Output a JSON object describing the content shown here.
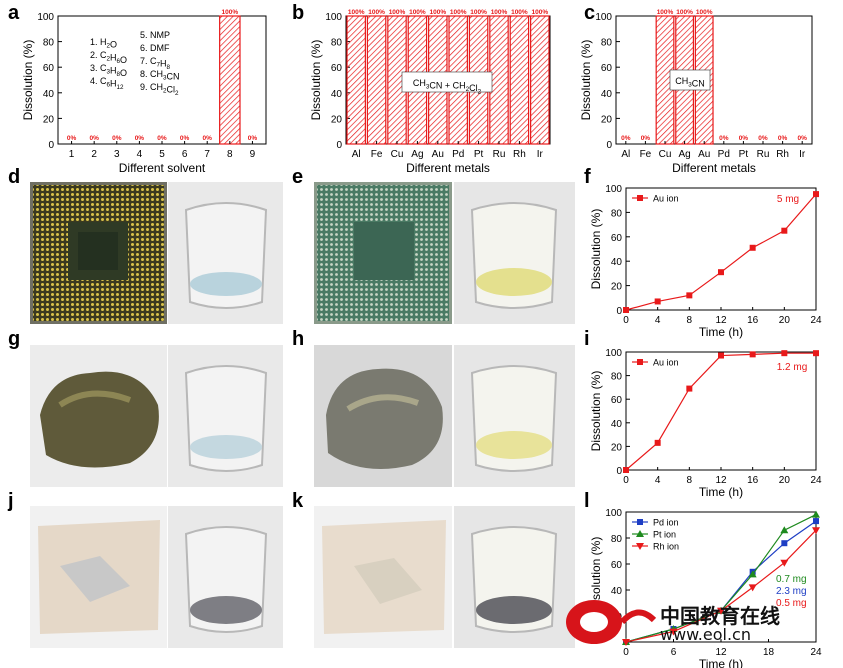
{
  "panel_labels": {
    "a": "a",
    "b": "b",
    "c": "c",
    "d": "d",
    "e": "e",
    "f": "f",
    "g": "g",
    "h": "h",
    "i": "i",
    "j": "j",
    "k": "k",
    "l": "l"
  },
  "colors": {
    "red": "#e8191a",
    "blue": "#1e3ec4",
    "green": "#1e8a1e",
    "hatch": "#e8191a"
  },
  "chart_data": [
    {
      "id": "a",
      "type": "bar",
      "categories": [
        "1",
        "2",
        "3",
        "4",
        "5",
        "6",
        "7",
        "8",
        "9"
      ],
      "values": [
        0,
        0,
        0,
        0,
        0,
        0,
        0,
        100,
        0
      ],
      "data_labels": [
        "0%",
        "0%",
        "0%",
        "0%",
        "0%",
        "0%",
        "0%",
        "100%",
        "0%"
      ],
      "xlabel": "Different solvent",
      "ylabel": "Dissolution (%)",
      "ylim": [
        0,
        100
      ],
      "yticks": [
        "0",
        "20",
        "40",
        "60",
        "80",
        "100"
      ],
      "legend_col1": [
        "1. H2O",
        "2. C2H6O",
        "3. C3H8O",
        "4. C6H12"
      ],
      "legend_col2": [
        "5. NMP",
        "6. DMF",
        "7. C7H8",
        "8. CH3CN",
        "9. CH2Cl2"
      ]
    },
    {
      "id": "b",
      "type": "bar",
      "categories": [
        "Al",
        "Fe",
        "Cu",
        "Ag",
        "Au",
        "Pd",
        "Pt",
        "Ru",
        "Rh",
        "Ir"
      ],
      "values": [
        100,
        100,
        100,
        100,
        100,
        100,
        100,
        100,
        100,
        100
      ],
      "data_labels": [
        "100%",
        "100%",
        "100%",
        "100%",
        "100%",
        "100%",
        "100%",
        "100%",
        "100%",
        "100%"
      ],
      "xlabel": "Different metals",
      "ylabel": "Dissolution (%)",
      "ylim": [
        0,
        100
      ],
      "yticks": [
        "0",
        "20",
        "40",
        "60",
        "80",
        "100"
      ],
      "annotation": "CH3CN + CH2Cl2"
    },
    {
      "id": "c",
      "type": "bar",
      "categories": [
        "Al",
        "Fe",
        "Cu",
        "Ag",
        "Au",
        "Pd",
        "Pt",
        "Ru",
        "Rh",
        "Ir"
      ],
      "values": [
        0,
        0,
        100,
        100,
        100,
        0,
        0,
        0,
        0,
        0
      ],
      "data_labels": [
        "0%",
        "0%",
        "100%",
        "100%",
        "100%",
        "0%",
        "0%",
        "0%",
        "0%",
        "0%"
      ],
      "xlabel": "Different metals",
      "ylabel": "Dissolution (%)",
      "ylim": [
        0,
        100
      ],
      "yticks": [
        "0",
        "20",
        "40",
        "60",
        "80",
        "100"
      ],
      "annotation": "CH3CN"
    },
    {
      "id": "f",
      "type": "line",
      "x": [
        0,
        4,
        8,
        12,
        16,
        20,
        24
      ],
      "series": [
        {
          "name": "Au ion",
          "values": [
            0,
            7,
            12,
            31,
            51,
            65,
            95
          ],
          "color": "#e8191a",
          "marker": "square"
        }
      ],
      "mass_labels": [
        {
          "text": "5 mg",
          "color": "#e8191a"
        }
      ],
      "xlabel": "Time (h)",
      "ylabel": "Dissolution (%)",
      "xlim": [
        0,
        24
      ],
      "ylim": [
        0,
        100
      ],
      "xticks": [
        "0",
        "4",
        "8",
        "12",
        "16",
        "20",
        "24"
      ],
      "yticks": [
        "0",
        "20",
        "40",
        "60",
        "80",
        "100"
      ]
    },
    {
      "id": "i",
      "type": "line",
      "x": [
        0,
        4,
        8,
        12,
        16,
        20,
        24
      ],
      "series": [
        {
          "name": "Au ion",
          "values": [
            0,
            23,
            69,
            97,
            98,
            99,
            99
          ],
          "color": "#e8191a",
          "marker": "square"
        }
      ],
      "mass_labels": [
        {
          "text": "1.2 mg",
          "color": "#e8191a"
        }
      ],
      "xlabel": "Time (h)",
      "ylabel": "Dissolution (%)",
      "xlim": [
        0,
        24
      ],
      "ylim": [
        0,
        100
      ],
      "xticks": [
        "0",
        "4",
        "8",
        "12",
        "16",
        "20",
        "24"
      ],
      "yticks": [
        "0",
        "20",
        "40",
        "60",
        "80",
        "100"
      ]
    },
    {
      "id": "l",
      "type": "line",
      "x": [
        0,
        6,
        12,
        16,
        20,
        24
      ],
      "series": [
        {
          "name": "Pd ion",
          "values": [
            0,
            10,
            24,
            54,
            76,
            93
          ],
          "color": "#1e3ec4",
          "marker": "square"
        },
        {
          "name": "Pt ion",
          "values": [
            0,
            10,
            24,
            52,
            86,
            98
          ],
          "color": "#1e8a1e",
          "marker": "triangle-up"
        },
        {
          "name": "Rh ion",
          "values": [
            0,
            8,
            24,
            42,
            61,
            86
          ],
          "color": "#e8191a",
          "marker": "triangle-down"
        }
      ],
      "mass_labels": [
        {
          "text": "0.7 mg",
          "color": "#1e8a1e"
        },
        {
          "text": "2.3 mg",
          "color": "#1e3ec4"
        },
        {
          "text": "0.5 mg",
          "color": "#e8191a"
        }
      ],
      "xlabel": "Time (h)",
      "ylabel": "Dissolution (%)",
      "xlim": [
        0,
        24
      ],
      "ylim": [
        0,
        100
      ],
      "xticks": [
        "0",
        "6",
        "12",
        "18",
        "24"
      ],
      "yticks": [
        "20",
        "40",
        "60",
        "80",
        "100"
      ]
    }
  ],
  "watermark": {
    "text": "中国教育在线",
    "url": "www.eol.cn"
  }
}
